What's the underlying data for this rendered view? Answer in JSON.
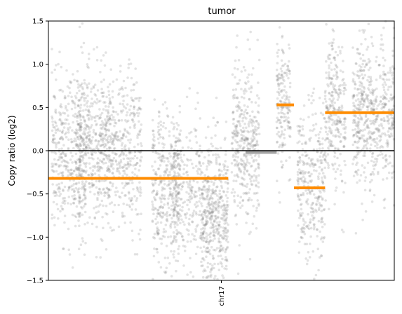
{
  "chart_data": {
    "type": "scatter",
    "title": "tumor",
    "xlabel": "",
    "ylabel": "Copy ratio (log2)",
    "ylim": [
      -1.5,
      1.5
    ],
    "yticks": [
      1.5,
      1.0,
      0.5,
      0.0,
      -0.5,
      -1.0,
      -1.5
    ],
    "ytick_labels": [
      "1.5",
      "1.0",
      "0.5",
      "0.0",
      "−0.5",
      "−1.0",
      "−1.5"
    ],
    "xticks": [
      "chr17"
    ],
    "grid": false,
    "legend": "none",
    "reference_line": {
      "y": 0.0,
      "color": "#000000"
    },
    "point_color": "#808080",
    "segment_color_gain_loss": "#ff8c00",
    "segment_color_neutral": "#a6a6a6",
    "x_range": [
      0,
      1
    ],
    "chromosome_position": 0.5,
    "segments": [
      {
        "start": 0.0,
        "end": 0.52,
        "value": -0.32,
        "status": "loss"
      },
      {
        "start": 0.57,
        "end": 0.66,
        "value": -0.02,
        "status": "neutral"
      },
      {
        "start": 0.66,
        "end": 0.71,
        "value": 0.53,
        "status": "gain"
      },
      {
        "start": 0.71,
        "end": 0.8,
        "value": -0.43,
        "status": "loss"
      },
      {
        "start": 0.8,
        "end": 1.0,
        "value": 0.44,
        "status": "gain"
      }
    ],
    "bins_approx": [
      {
        "x_center": 0.06,
        "spread": 0.05,
        "mean": -0.05,
        "sd": 0.45,
        "count": 420
      },
      {
        "x_center": 0.13,
        "spread": 0.05,
        "mean": 0.05,
        "sd": 0.45,
        "count": 460
      },
      {
        "x_center": 0.22,
        "spread": 0.05,
        "mean": -0.02,
        "sd": 0.45,
        "count": 360
      },
      {
        "x_center": 0.34,
        "spread": 0.04,
        "mean": -0.45,
        "sd": 0.45,
        "count": 360
      },
      {
        "x_center": 0.4,
        "spread": 0.04,
        "mean": -0.5,
        "sd": 0.45,
        "count": 260
      },
      {
        "x_center": 0.48,
        "spread": 0.04,
        "mean": -0.8,
        "sd": 0.45,
        "count": 500
      },
      {
        "x_center": 0.57,
        "spread": 0.04,
        "mean": 0.1,
        "sd": 0.45,
        "count": 380
      },
      {
        "x_center": 0.68,
        "spread": 0.02,
        "mean": 0.52,
        "sd": 0.4,
        "count": 180
      },
      {
        "x_center": 0.76,
        "spread": 0.04,
        "mean": -0.4,
        "sd": 0.45,
        "count": 320
      },
      {
        "x_center": 0.83,
        "spread": 0.03,
        "mean": 0.45,
        "sd": 0.45,
        "count": 280
      },
      {
        "x_center": 0.91,
        "spread": 0.03,
        "mean": 0.45,
        "sd": 0.45,
        "count": 320
      },
      {
        "x_center": 0.97,
        "spread": 0.03,
        "mean": 0.4,
        "sd": 0.45,
        "count": 240
      }
    ]
  }
}
